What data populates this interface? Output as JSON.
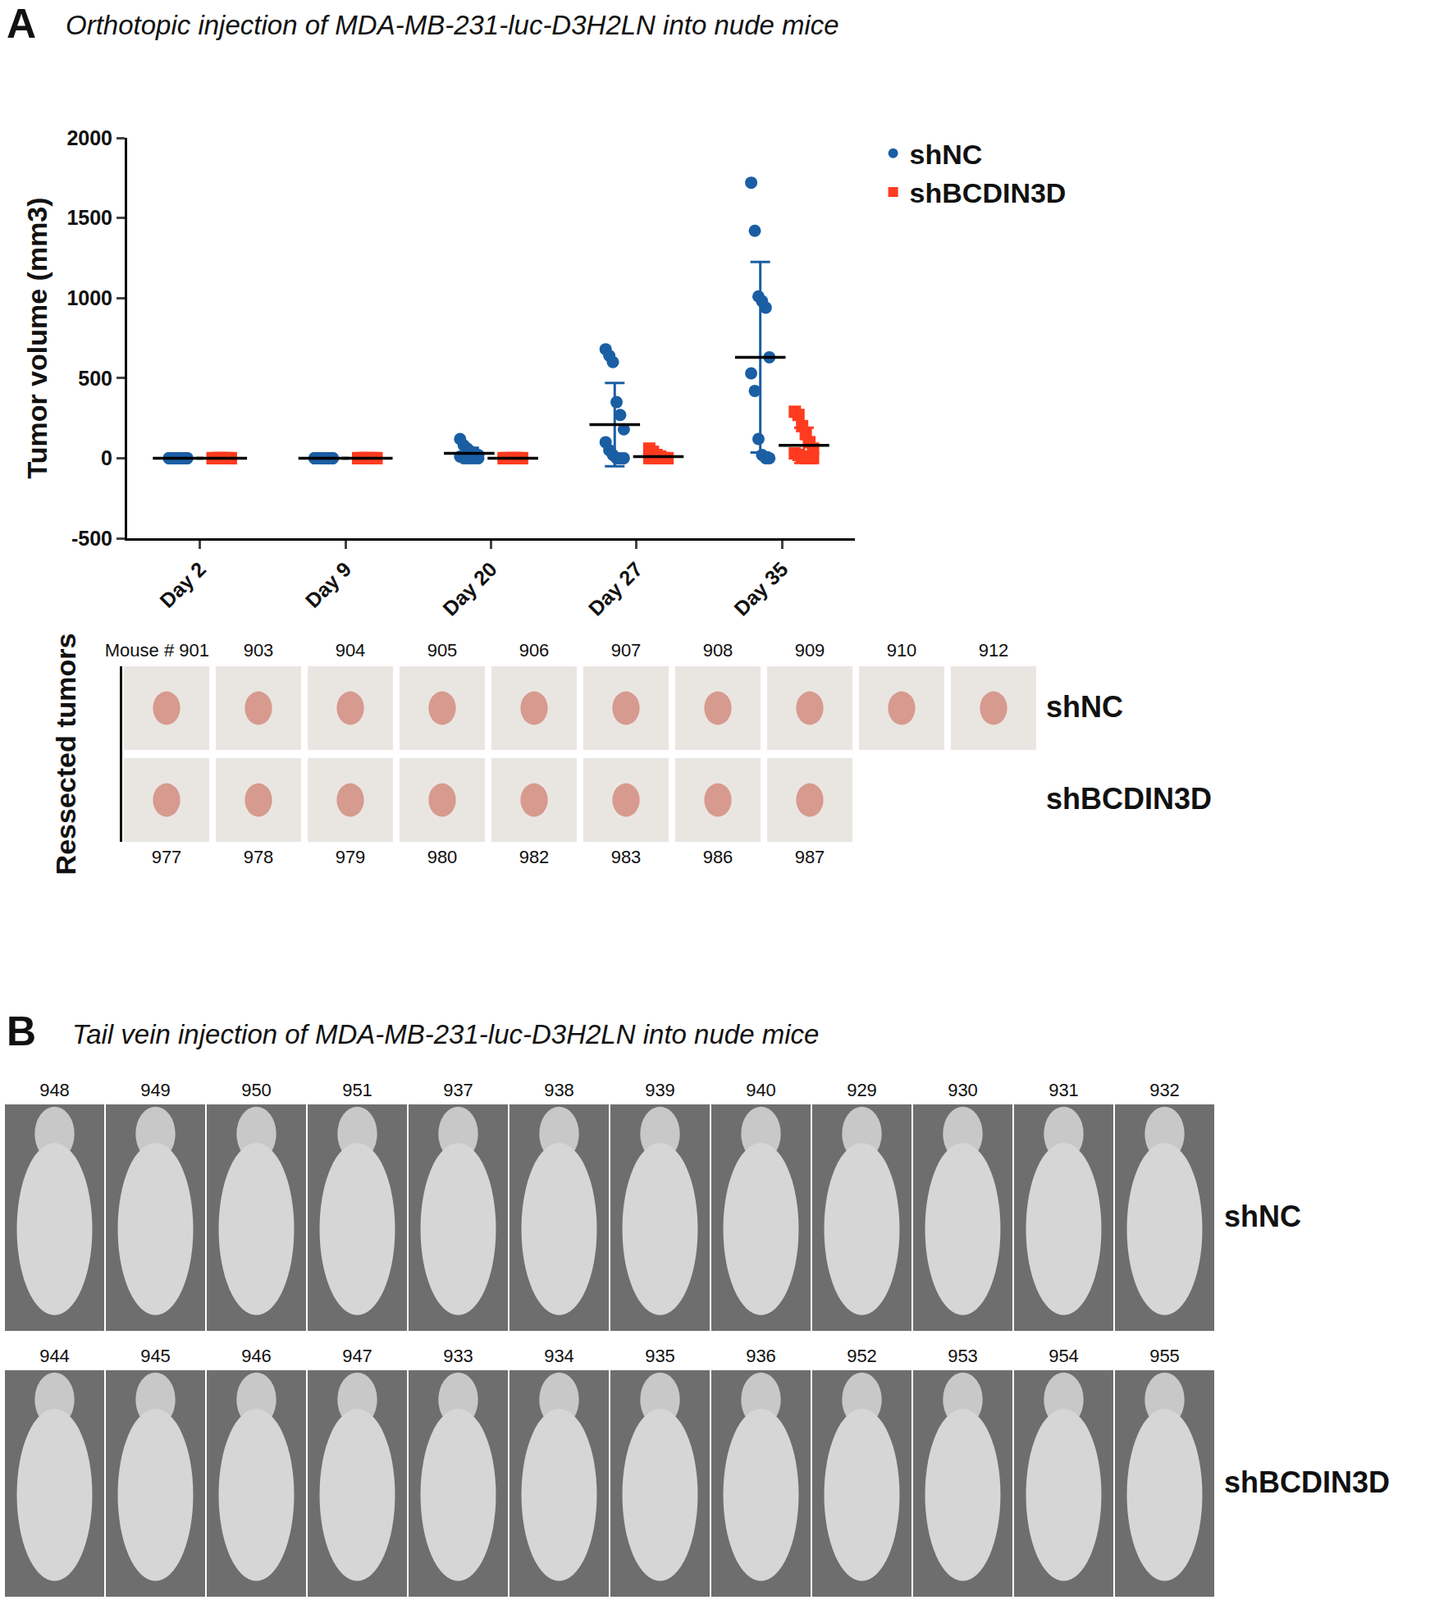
{
  "chart_data": {
    "type": "scatter",
    "y_label": "Tumor volume (mm3)",
    "categories": [
      "Day 2",
      "Day 9",
      "Day 20",
      "Day 27",
      "Day 35"
    ],
    "ylim": [
      -500,
      2000
    ],
    "yticks": [
      -500,
      0,
      500,
      1000,
      1500,
      2000
    ],
    "grid": false,
    "legend": "top right",
    "series": [
      {
        "name": "shNC",
        "color": "#1a5ea4",
        "marker": "circle",
        "values": [
          [
            0,
            0,
            0,
            0,
            0,
            0,
            0,
            0,
            0,
            0,
            0,
            0
          ],
          [
            0,
            0,
            0,
            0,
            0,
            0,
            0,
            0,
            0,
            0,
            0,
            0
          ],
          [
            120,
            80,
            60,
            40,
            30,
            20,
            10,
            0,
            0,
            0,
            0,
            0
          ],
          [
            680,
            640,
            600,
            350,
            270,
            180,
            100,
            50,
            20,
            0,
            0,
            0
          ],
          [
            1720,
            1420,
            1010,
            980,
            940,
            630,
            530,
            420,
            120,
            20,
            0,
            0
          ]
        ],
        "mean": [
          0,
          0,
          30,
          210,
          630
        ],
        "sd": [
          0,
          0,
          35,
          260,
          595
        ]
      },
      {
        "name": "shBCDIN3D",
        "color": "#ff3b1f",
        "marker": "square",
        "values": [
          [
            0,
            0,
            0,
            0,
            0,
            0,
            0,
            0,
            0,
            0,
            0,
            0
          ],
          [
            0,
            0,
            0,
            0,
            0,
            0,
            0,
            0,
            0,
            0,
            0,
            0
          ],
          [
            0,
            0,
            0,
            0,
            0,
            0,
            0,
            0,
            0,
            0,
            0,
            0
          ],
          [
            60,
            40,
            20,
            10,
            0,
            0,
            0,
            0,
            0,
            0,
            0,
            0
          ],
          [
            290,
            270,
            200,
            150,
            100,
            60,
            30,
            20,
            10,
            0,
            0,
            0
          ]
        ],
        "mean": [
          0,
          0,
          0,
          10,
          80
        ],
        "sd": [
          0,
          0,
          0,
          20,
          110
        ]
      }
    ]
  },
  "figure": {
    "panel_A": {
      "label": "A",
      "title": "Orthotopic injection of MDA-MB-231-luc-D3H2LN into nude mice",
      "images_label": "Ressected tumors",
      "rows": [
        {
          "name": "shNC",
          "mice": [
            "Mouse # 901",
            "903",
            "904",
            "905",
            "906",
            "907",
            "908",
            "909",
            "910",
            "912"
          ]
        },
        {
          "name": "shBCDIN3D",
          "mice": [
            "977",
            "978",
            "979",
            "980",
            "982",
            "983",
            "986",
            "987"
          ]
        }
      ]
    },
    "panel_B": {
      "label": "B",
      "title": "Tail vein injection of MDA-MB-231-luc-D3H2LN into nude mice",
      "rows": [
        {
          "name": "shNC",
          "mice": [
            "948",
            "949",
            "950",
            "951",
            "937",
            "938",
            "939",
            "940",
            "929",
            "930",
            "931",
            "932"
          ]
        },
        {
          "name": "shBCDIN3D",
          "mice": [
            "944",
            "945",
            "946",
            "947",
            "933",
            "934",
            "935",
            "936",
            "952",
            "953",
            "954",
            "955"
          ]
        }
      ]
    }
  }
}
